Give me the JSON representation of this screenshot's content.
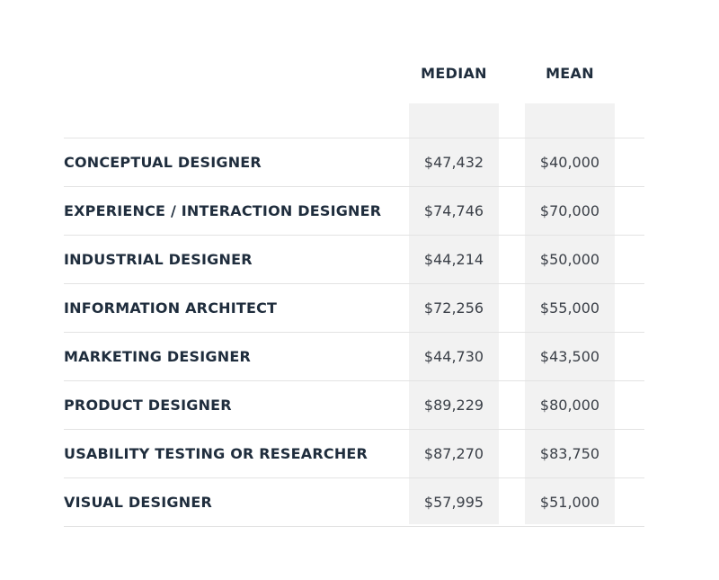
{
  "chart_data": {
    "type": "table",
    "columns": [
      "MEDIAN",
      "MEAN"
    ],
    "rows": [
      {
        "role": "CONCEPTUAL DESIGNER",
        "median": "$47,432",
        "mean": "$40,000"
      },
      {
        "role": "EXPERIENCE / INTERACTION DESIGNER",
        "median": "$74,746",
        "mean": "$70,000"
      },
      {
        "role": "INDUSTRIAL DESIGNER",
        "median": "$44,214",
        "mean": "$50,000"
      },
      {
        "role": "INFORMATION ARCHITECT",
        "median": "$72,256",
        "mean": "$55,000"
      },
      {
        "role": "MARKETING DESIGNER",
        "median": "$44,730",
        "mean": "$43,500"
      },
      {
        "role": "PRODUCT DESIGNER",
        "median": "$89,229",
        "mean": "$80,000"
      },
      {
        "role": "USABILITY TESTING OR RESEARCHER",
        "median": "$87,270",
        "mean": "$83,750"
      },
      {
        "role": "VISUAL DESIGNER",
        "median": "$57,995",
        "mean": "$51,000"
      }
    ],
    "colors": {
      "column_shade": "#f2f2f2",
      "text": "#1f2d3d",
      "divider": "#e3e3e3"
    }
  }
}
